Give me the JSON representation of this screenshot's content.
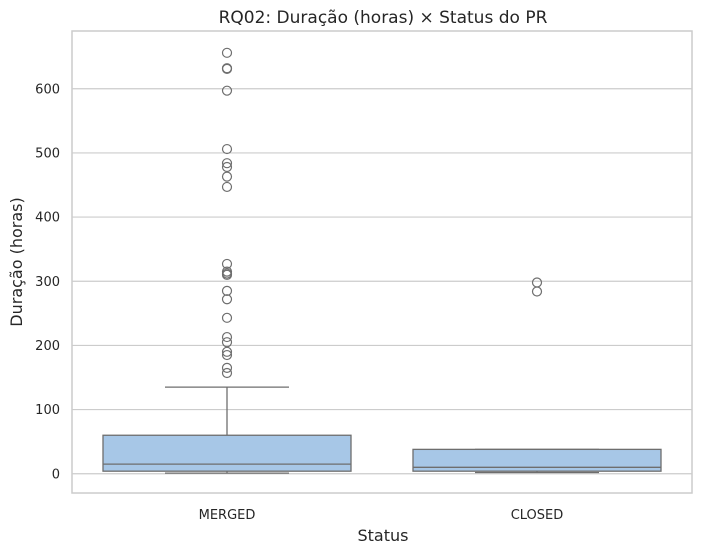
{
  "chart_data": {
    "type": "box",
    "title": "RQ02: Duração (horas) × Status do PR",
    "xlabel": "Status",
    "ylabel": "Duração (horas)",
    "categories": [
      "MERGED",
      "CLOSED"
    ],
    "ylim": [
      -30,
      690
    ],
    "yticks": [
      0,
      100,
      200,
      300,
      400,
      500,
      600
    ],
    "grid": true,
    "box_color": "#a7c7e7",
    "line_color": "#6e6e6e",
    "boxes": [
      {
        "category": "MERGED",
        "whisker_low": 1,
        "q1": 4,
        "median": 15,
        "q3": 60,
        "whisker_high": 135,
        "outliers": [
          656,
          632,
          631,
          597,
          506,
          484,
          478,
          463,
          447,
          327,
          315,
          312,
          310,
          285,
          272,
          243,
          213,
          205,
          190,
          185,
          165,
          157
        ]
      },
      {
        "category": "CLOSED",
        "whisker_low": 2,
        "q1": 4,
        "median": 10,
        "q3": 38,
        "whisker_high": 38,
        "outliers": [
          298,
          284
        ]
      }
    ]
  }
}
